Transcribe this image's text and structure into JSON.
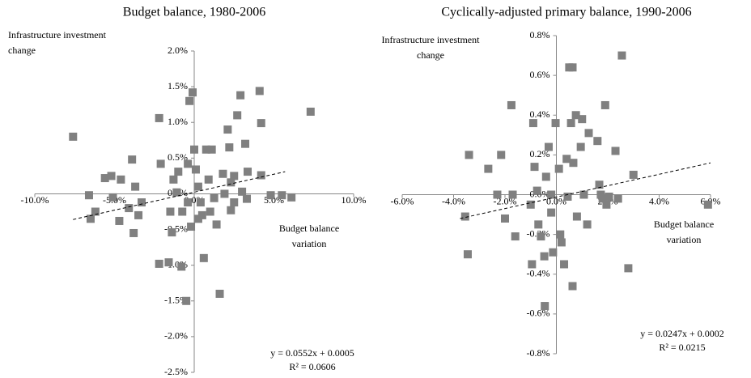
{
  "chart_data": [
    {
      "type": "scatter",
      "title": "Budget balance, 1980-2006",
      "y_label": [
        "Infrastructure investment",
        "change"
      ],
      "x_label": [
        "Budget balance",
        "variation"
      ],
      "annotations": [
        "y = 0.0552x + 0.0005",
        "R² = 0.0606"
      ],
      "color": "#808080",
      "xlim": [
        -10,
        10
      ],
      "ylim": [
        -2.5,
        2.0
      ],
      "xticks": [
        {
          "value": -10,
          "label": "-10.0%"
        },
        {
          "value": -5,
          "label": "-5.0%"
        },
        {
          "value": 0,
          "label": "0.0%"
        },
        {
          "value": 5,
          "label": "5.0%"
        },
        {
          "value": 10,
          "label": "10.0%"
        }
      ],
      "yticks": [
        {
          "value": 2.0,
          "label": "2.0%"
        },
        {
          "value": 1.5,
          "label": "1.5%"
        },
        {
          "value": 1.0,
          "label": "1.0%"
        },
        {
          "value": 0.5,
          "label": "0.5%"
        },
        {
          "value": 0,
          "label": "0.0%"
        },
        {
          "value": -0.5,
          "label": "-0.5%"
        },
        {
          "value": -1.0,
          "label": "-1.0%"
        },
        {
          "value": -1.5,
          "label": "-1.5%"
        },
        {
          "value": -2.0,
          "label": "-2.0%"
        },
        {
          "value": -2.5,
          "label": "-2.5%"
        }
      ],
      "x": [
        -7.6,
        -6.6,
        -6.5,
        -6.2,
        -5.6,
        -5.2,
        -5.1,
        -4.7,
        -4.6,
        -4.1,
        -3.9,
        -3.8,
        -3.7,
        -3.5,
        -3.3,
        -2.2,
        -2.1,
        -2.2,
        -1.5,
        -1.6,
        -1.4,
        -1.3,
        -1.1,
        -0.8,
        -0.5,
        -0.4,
        -0.3,
        -0.1,
        -0.2,
        0.0,
        0.1,
        0.25,
        0.4,
        0.5,
        0.6,
        0.75,
        0.9,
        1.0,
        1.1,
        1.25,
        1.4,
        1.6,
        1.8,
        1.9,
        2.1,
        2.2,
        2.3,
        2.5,
        2.7,
        2.9,
        3.0,
        3.2,
        3.35,
        4.1,
        4.2,
        4.2,
        4.8,
        5.5,
        6.1,
        7.3,
        -0.4,
        0.25,
        -0.75,
        2.5,
        3.3,
        2.3,
        -1.0
      ],
      "y": [
        0.8,
        -0.02,
        -0.35,
        -0.25,
        0.22,
        0.25,
        -0.05,
        -0.38,
        0.2,
        -0.2,
        0.48,
        -0.55,
        0.1,
        -0.3,
        -0.12,
        1.06,
        0.42,
        -0.98,
        -0.25,
        -0.96,
        -0.54,
        0.2,
        0.02,
        -1.02,
        -1.5,
        0.42,
        1.3,
        1.42,
        -0.46,
        0.62,
        0.34,
        0.1,
        -0.12,
        -0.3,
        -0.9,
        0.62,
        0.2,
        -0.25,
        0.62,
        -0.06,
        -0.43,
        -1.4,
        0.28,
        0.0,
        0.9,
        0.65,
        0.16,
        0.25,
        1.1,
        1.38,
        0.03,
        0.7,
        0.31,
        1.44,
        0.99,
        0.26,
        -0.02,
        -0.02,
        -0.05,
        1.15,
        -0.12,
        -0.35,
        -0.25,
        -0.12,
        -0.07,
        -0.23,
        0.31
      ],
      "trendline": {
        "x": [
          -7.6,
          5.7
        ],
        "y": [
          -0.36,
          0.31
        ]
      }
    },
    {
      "type": "scatter",
      "title": "Cyclically-adjusted primary balance, 1990-2006",
      "y_label": [
        "Infrastructure investment",
        "change"
      ],
      "x_label": [
        "Budget balance",
        "variation"
      ],
      "annotations": [
        "y = 0.0247x + 0.0002",
        "R² = 0.0215"
      ],
      "color": "#808080",
      "xlim": [
        -6,
        6
      ],
      "ylim": [
        -0.8,
        0.8
      ],
      "xticks": [
        {
          "value": -6,
          "label": "-6.0%"
        },
        {
          "value": -4,
          "label": "-4.0%"
        },
        {
          "value": -2,
          "label": "-2.0%"
        },
        {
          "value": 0,
          "label": "0.0%"
        },
        {
          "value": 2,
          "label": "2.0%"
        },
        {
          "value": 4,
          "label": "4.0%"
        },
        {
          "value": 6,
          "label": "6.0%"
        }
      ],
      "yticks": [
        {
          "value": 0.8,
          "label": "0.8%"
        },
        {
          "value": 0.6,
          "label": "0.6%"
        },
        {
          "value": 0.4,
          "label": "0.4%"
        },
        {
          "value": 0.2,
          "label": "0.2%"
        },
        {
          "value": 0,
          "label": "0.0%"
        },
        {
          "value": -0.2,
          "label": "-0.2%"
        },
        {
          "value": -0.4,
          "label": "-0.4%"
        },
        {
          "value": -0.6,
          "label": "-0.6%"
        },
        {
          "value": -0.8,
          "label": "-0.8%"
        }
      ],
      "x": [
        -3.4,
        -3.55,
        -3.45,
        -2.65,
        -2.3,
        -2.15,
        -2.0,
        -1.75,
        -1.7,
        -1.6,
        -1.0,
        -0.95,
        -0.9,
        -0.85,
        -0.75,
        -0.7,
        -0.6,
        -0.47,
        -0.45,
        -0.4,
        -0.3,
        -0.2,
        -0.13,
        -0.03,
        0.1,
        0.15,
        0.2,
        0.3,
        0.4,
        0.5,
        0.63,
        0.57,
        0.66,
        0.63,
        0.76,
        0.8,
        0.95,
        1.0,
        1.07,
        1.2,
        1.26,
        1.6,
        1.67,
        1.73,
        1.9,
        1.95,
        2.05,
        2.3,
        2.4,
        2.55,
        2.8,
        3.0,
        5.9,
        0.44,
        -0.2,
        1.8
      ],
      "y": [
        0.2,
        -0.11,
        -0.3,
        0.13,
        0.0,
        0.2,
        -0.12,
        0.45,
        0.0,
        -0.21,
        -0.05,
        -0.35,
        0.36,
        0.14,
        0.02,
        -0.15,
        -0.21,
        -0.31,
        -0.56,
        0.09,
        0.24,
        -0.09,
        -0.29,
        0.36,
        0.13,
        -0.2,
        -0.24,
        -0.35,
        0.18,
        0.64,
        0.64,
        0.36,
        0.16,
        -0.46,
        0.4,
        -0.11,
        0.24,
        0.38,
        0.0,
        -0.15,
        0.31,
        0.27,
        0.05,
        0.0,
        0.45,
        -0.05,
        -0.01,
        0.22,
        -0.02,
        0.7,
        -0.37,
        0.1,
        -0.05,
        -0.01,
        0.0,
        -0.02
      ],
      "trendline": {
        "x": [
          -3.75,
          6.0
        ],
        "y": [
          -0.12,
          0.16
        ]
      }
    }
  ]
}
